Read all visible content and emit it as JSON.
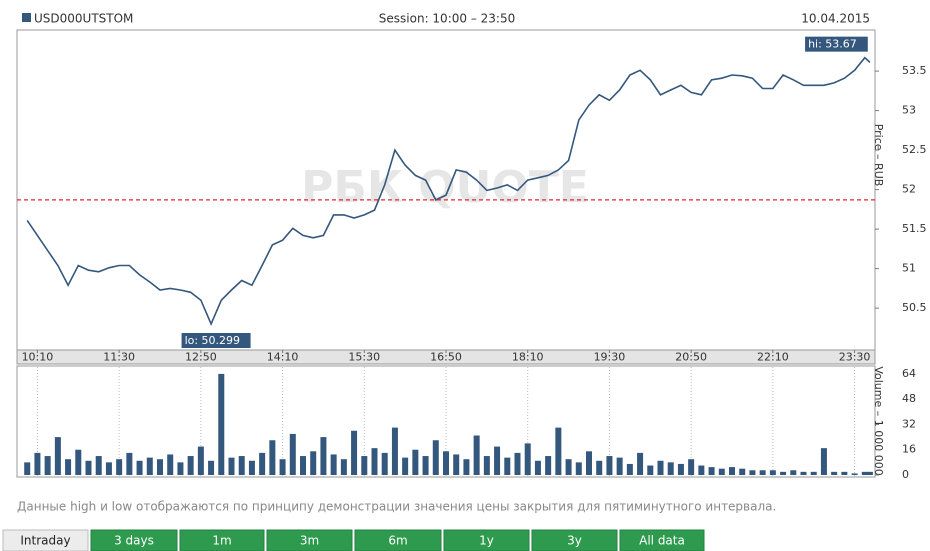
{
  "chart_data": [
    {
      "type": "line",
      "header": {
        "session": "Session: 10:00 – 23:50",
        "date": "10.04.2015"
      },
      "watermark": "РБК QUOTE",
      "y_label": "Price – RUB",
      "x": [
        600,
        610,
        620,
        630,
        640,
        650,
        660,
        670,
        680,
        690,
        700,
        710,
        720,
        730,
        740,
        750,
        760,
        770,
        780,
        790,
        800,
        810,
        820,
        830,
        840,
        850,
        860,
        870,
        880,
        890,
        900,
        910,
        920,
        930,
        940,
        950,
        960,
        970,
        980,
        990,
        1000,
        1010,
        1020,
        1030,
        1040,
        1050,
        1060,
        1070,
        1080,
        1090,
        1100,
        1110,
        1120,
        1130,
        1140,
        1150,
        1160,
        1170,
        1180,
        1190,
        1200,
        1210,
        1220,
        1230,
        1240,
        1250,
        1260,
        1270,
        1280,
        1290,
        1300,
        1310,
        1320,
        1330,
        1340,
        1350,
        1360,
        1370,
        1380,
        1390,
        1400,
        1410,
        1420,
        1425
      ],
      "series": [
        {
          "name": "USD000UTSTOM",
          "color": "#34577d",
          "values": [
            51.61,
            51.42,
            51.23,
            51.04,
            50.79,
            51.04,
            50.98,
            50.96,
            51.01,
            51.04,
            51.04,
            50.92,
            50.83,
            50.73,
            50.75,
            50.73,
            50.7,
            50.6,
            50.299,
            50.6,
            50.73,
            50.85,
            50.79,
            51.04,
            51.3,
            51.36,
            51.51,
            51.42,
            51.39,
            51.42,
            51.68,
            51.68,
            51.64,
            51.68,
            51.74,
            52.06,
            52.5,
            52.31,
            52.18,
            52.12,
            51.87,
            51.93,
            52.25,
            52.22,
            52.12,
            51.99,
            52.02,
            52.06,
            51.99,
            52.12,
            52.15,
            52.18,
            52.25,
            52.37,
            52.88,
            53.07,
            53.2,
            53.13,
            53.26,
            53.45,
            53.51,
            53.39,
            53.2,
            53.26,
            53.32,
            53.23,
            53.2,
            53.39,
            53.41,
            53.45,
            53.44,
            53.41,
            53.28,
            53.28,
            53.45,
            53.39,
            53.32,
            53.32,
            53.32,
            53.35,
            53.41,
            53.51,
            53.67,
            53.61
          ]
        }
      ],
      "reference_line": {
        "value": 51.87,
        "color": "#e0262f"
      },
      "annotations": [
        {
          "label": "hi: 53.67",
          "x": 1420,
          "y": 53.67
        },
        {
          "label": "lo: 50.299",
          "x": 780,
          "y": 50.299
        }
      ],
      "xlim": [
        590,
        1430
      ],
      "xticks": [
        {
          "value": 610,
          "label": "10:10"
        },
        {
          "value": 690,
          "label": "11:30"
        },
        {
          "value": 770,
          "label": "12:50"
        },
        {
          "value": 850,
          "label": "14:10"
        },
        {
          "value": 930,
          "label": "15:30"
        },
        {
          "value": 1010,
          "label": "16:50"
        },
        {
          "value": 1090,
          "label": "18:10"
        },
        {
          "value": 1170,
          "label": "19:30"
        },
        {
          "value": 1250,
          "label": "20:50"
        },
        {
          "value": 1330,
          "label": "22:10"
        },
        {
          "value": 1410,
          "label": "23:30"
        }
      ],
      "ylim": [
        49.97,
        54.02
      ],
      "yticks": [
        50.5,
        51,
        51.5,
        52,
        52.5,
        53,
        53.5
      ]
    },
    {
      "type": "bar",
      "y_label": "Volume – 1 000 000",
      "color": "#34577d",
      "values": [
        8,
        14,
        12,
        24,
        10,
        16,
        9,
        12,
        8,
        10,
        14,
        9,
        11,
        10,
        13,
        8,
        12,
        18,
        9,
        64,
        11,
        12,
        9,
        14,
        22,
        10,
        26,
        12,
        15,
        24,
        13,
        10,
        28,
        12,
        17,
        14,
        30,
        11,
        16,
        12,
        22,
        15,
        13,
        10,
        25,
        12,
        18,
        11,
        14,
        20,
        9,
        12,
        30,
        10,
        8,
        15,
        9,
        12,
        11,
        7,
        14,
        6,
        9,
        8,
        7,
        10,
        6,
        5,
        4,
        5,
        4,
        3,
        3,
        3,
        2,
        3,
        2,
        2,
        17,
        2,
        2,
        1,
        2,
        2
      ],
      "ylim": [
        0,
        69
      ],
      "yticks": [
        0,
        16,
        32,
        48,
        64
      ]
    }
  ],
  "footnote": "Данные high и low отображаются по принципу демонстрации значения цены закрытия для пятиминутного интервала.",
  "tabs": [
    "Intraday",
    "3 days",
    "1m",
    "3m",
    "6m",
    "1y",
    "3y",
    "All data"
  ],
  "active_tab": 0
}
